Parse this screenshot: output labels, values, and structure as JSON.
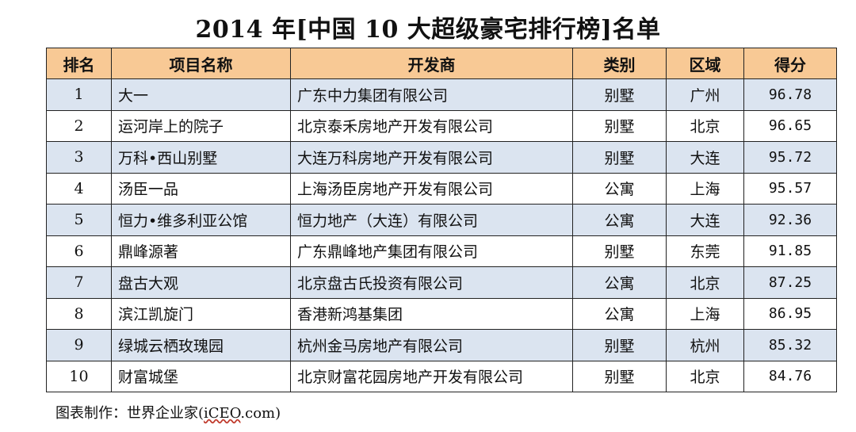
{
  "title": "2014 年[中国 10 大超级豪宅排行榜]名单",
  "headers": {
    "rank": "排名",
    "project": "项目名称",
    "developer": "开发商",
    "category": "类别",
    "region": "区域",
    "score": "得分"
  },
  "rows": [
    {
      "rank": "1",
      "project": "大一",
      "developer": "广东中力集团有限公司",
      "category": "别墅",
      "region": "广州",
      "score": "96.78"
    },
    {
      "rank": "2",
      "project": "运河岸上的院子",
      "developer": "北京泰禾房地产开发有限公司",
      "category": "别墅",
      "region": "北京",
      "score": "96.65"
    },
    {
      "rank": "3",
      "project": "万科•西山别墅",
      "developer": "大连万科房地产开发有限公司",
      "category": "别墅",
      "region": "大连",
      "score": "95.72"
    },
    {
      "rank": "4",
      "project": "汤臣一品",
      "developer": "上海汤臣房地产开发有限公司",
      "category": "公寓",
      "region": "上海",
      "score": "95.57"
    },
    {
      "rank": "5",
      "project": "恒力•维多利亚公馆",
      "developer": "恒力地产（大连）有限公司",
      "category": "公寓",
      "region": "大连",
      "score": "92.36"
    },
    {
      "rank": "6",
      "project": "鼎峰源著",
      "developer": "广东鼎峰地产集团有限公司",
      "category": "别墅",
      "region": "东莞",
      "score": "91.85"
    },
    {
      "rank": "7",
      "project": "盘古大观",
      "developer": "北京盘古氏投资有限公司",
      "category": "公寓",
      "region": "北京",
      "score": "87.25"
    },
    {
      "rank": "8",
      "project": "滨江凯旋门",
      "developer": "香港新鸿基集团",
      "category": "公寓",
      "region": "上海",
      "score": "86.95"
    },
    {
      "rank": "9",
      "project": "绿城云栖玫瑰园",
      "developer": "杭州金马房地产有限公司",
      "category": "别墅",
      "region": "杭州",
      "score": "85.32"
    },
    {
      "rank": "10",
      "project": "财富城堡",
      "developer": "北京财富花园房地产开发有限公司",
      "category": "别墅",
      "region": "北京",
      "score": "84.76"
    }
  ],
  "source": {
    "prefix": "图表制作：世界企业家(",
    "brand": "iCEO",
    "suffix": ".com)"
  },
  "colors": {
    "header_bg": "#f8c995",
    "shaded_row_bg": "#dbe4f0",
    "border": "#222222"
  }
}
